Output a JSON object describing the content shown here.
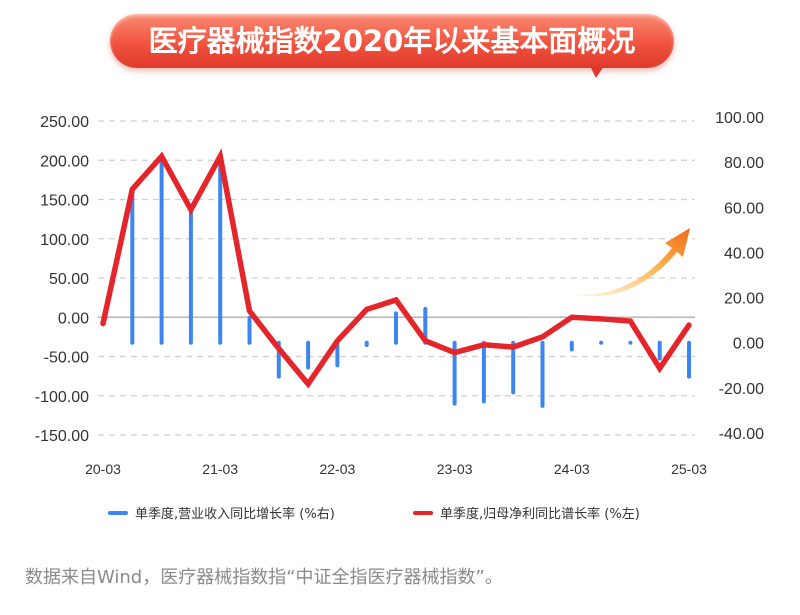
{
  "banner": {
    "title": "医疗器械指数2020年以来基本面概况"
  },
  "chart_data": {
    "type": "bar+line",
    "title": "医疗器械指数2020年以来基本面概况",
    "categories": [
      "20-03",
      "20-06",
      "20-09",
      "20-12",
      "21-03",
      "21-06",
      "21-09",
      "21-12",
      "22-03",
      "22-06",
      "22-09",
      "22-12",
      "23-03",
      "23-06",
      "23-09",
      "23-12",
      "24-03",
      "24-06",
      "24-09",
      "24-12",
      "25-03"
    ],
    "x_tick_labels": [
      "20-03",
      "21-03",
      "22-03",
      "23-03",
      "24-03",
      "25-03"
    ],
    "left_axis": {
      "ticks": [
        "250.00",
        "200.00",
        "150.00",
        "100.00",
        "50.00",
        "0.00",
        "-50.00",
        "-100.00",
        "-150.00"
      ],
      "range": [
        -150,
        250
      ]
    },
    "right_axis": {
      "ticks": [
        "100.00",
        "80.00",
        "60.00",
        "40.00",
        "20.00",
        "0.00",
        "-20.00",
        "-40.00"
      ],
      "range": [
        -40,
        100
      ]
    },
    "grid": "horizontal dashed",
    "legend_position": "bottom",
    "series": [
      {
        "name": "单季度,营业收入同比增长率(%右)",
        "type": "bar",
        "axis": "right",
        "color": "#3d85f0",
        "values": [
          null,
          68,
          83,
          60,
          81,
          11,
          -15,
          -11,
          -10,
          -1,
          13,
          15,
          -27,
          -26,
          -22,
          -28,
          -3,
          0,
          0,
          -7,
          -15
        ]
      },
      {
        "name": "单季度,归母净利同比谱长率(%左)",
        "type": "line",
        "axis": "left",
        "color": "#e4262b",
        "values": [
          -8,
          163,
          205,
          137,
          205,
          8,
          -40,
          -85,
          -30,
          10,
          22,
          -30,
          -45,
          -35,
          -38,
          -25,
          0,
          -2,
          -5,
          -65,
          -10
        ]
      }
    ]
  },
  "legend": {
    "items": [
      {
        "label": "单季度,营业收入同比增长率 (%右)",
        "color": "#3d85f0"
      },
      {
        "label": "单季度,归母净利同比谱长率 (%左)",
        "color": "#e4262b"
      }
    ]
  },
  "footnote": "数据来自Wind，医疗器械指数指“中证全指医疗器械指数”。"
}
